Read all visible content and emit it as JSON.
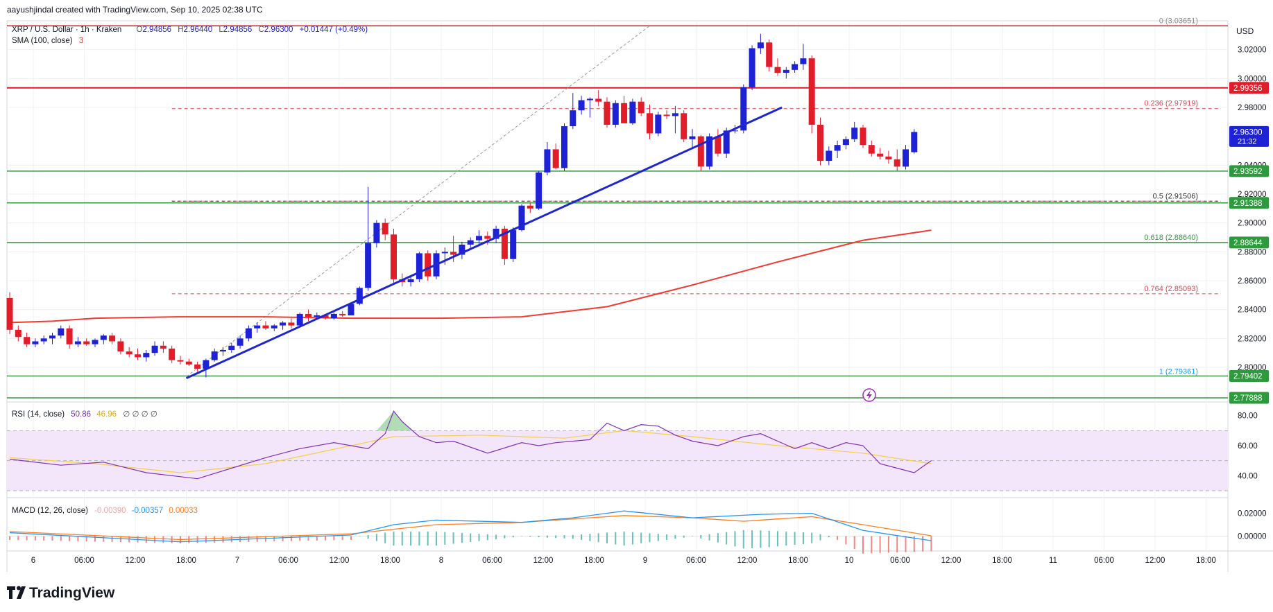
{
  "header": {
    "credit": "aayushjindal created with TradingView.com, Sep 10, 2025 02:38 UTC",
    "symbol": "XRP / U.S. Dollar · 1h · Kraken",
    "ohlc": {
      "o_label": "O",
      "o": "2.94856",
      "h_label": "H",
      "h": "2.96440",
      "l_label": "L",
      "l": "2.94856",
      "c_label": "C",
      "c": "2.96300",
      "chg": "+0.01447 (+0.49%)"
    },
    "sma_label": "SMA (100, close)",
    "sma_value": "3",
    "currency": "USD"
  },
  "colors": {
    "up": "#1e22d6",
    "down": "#e11d2a",
    "trendline": "#1f26d0",
    "sma": "#f23a2f",
    "resistance": "#e5141f",
    "support": "#2e9a3e",
    "fib_dash": "#e0434f",
    "rsi_line": "#7e2fb8",
    "rsi_ma": "#f6cf45",
    "rsi_band": "#f3e6fb",
    "macd_line": "#2196f3",
    "signal_line": "#ff7f1e"
  },
  "price_axis": {
    "min": 2.776,
    "max": 3.04,
    "ticks": [
      "3.02000",
      "3.00000",
      "2.98000",
      "2.94000",
      "2.92000",
      "2.90000",
      "2.88000",
      "2.86000",
      "2.84000",
      "2.82000",
      "2.80000"
    ],
    "tick_values": [
      3.02,
      3.0,
      2.98,
      2.94,
      2.92,
      2.9,
      2.88,
      2.86,
      2.84,
      2.82,
      2.8
    ]
  },
  "price_badges": [
    {
      "label": "2.99356",
      "value": 2.99356,
      "color": "#e11d2a"
    },
    {
      "label": "2.96300",
      "value": 2.963,
      "color": "#1e22d6",
      "sub": "21:32"
    },
    {
      "label": "2.93592",
      "value": 2.93592,
      "color": "#2e9a3e"
    },
    {
      "label": "2.91388",
      "value": 2.91388,
      "color": "#2e9a3e"
    },
    {
      "label": "2.88644",
      "value": 2.88644,
      "color": "#2e9a3e"
    },
    {
      "label": "2.79402",
      "value": 2.79402,
      "color": "#2e9a3e"
    },
    {
      "label": "2.77888",
      "value": 2.77888,
      "color": "#2e9a3e"
    }
  ],
  "fib_levels": [
    {
      "label": "0 (3.03651)",
      "value": 3.03651,
      "dashed": false
    },
    {
      "label": "0.236 (2.97919)",
      "value": 2.97919,
      "dashed": true
    },
    {
      "label": "0.5 (2.91506)",
      "value": 2.91506,
      "dashed": true
    },
    {
      "label": "0.618 (2.88640)",
      "value": 2.8864,
      "dashed": false
    },
    {
      "label": "0.764 (2.85093)",
      "value": 2.85093,
      "dashed": true
    },
    {
      "label": "1 (2.79361)",
      "value": 2.79361,
      "dashed": false
    }
  ],
  "time_axis": [
    "6",
    "06:00",
    "12:00",
    "18:00",
    "7",
    "06:00",
    "12:00",
    "18:00",
    "8",
    "06:00",
    "12:00",
    "18:00",
    "9",
    "06:00",
    "12:00",
    "18:00",
    "10",
    "06:00",
    "12:00",
    "18:00",
    "11",
    "06:00",
    "12:00",
    "18:00"
  ],
  "rsi": {
    "label": "RSI (14, close)",
    "v1": "50.86",
    "v2": "46.96",
    "extra": "∅ ∅ ∅ ∅",
    "ticks": [
      "80.00",
      "60.00",
      "40.00"
    ]
  },
  "macd": {
    "label": "MACD (12, 26, close)",
    "hist": "-0.00390",
    "macd": "-0.00357",
    "signal": "0.00033",
    "ticks": [
      "0.02000",
      "0.00000"
    ]
  },
  "brand": "TradingView",
  "chart_data": {
    "type": "candlestick",
    "title": "XRP / U.S. Dollar · 1h · Kraken",
    "ylabel": "USD",
    "ylim": [
      2.776,
      3.04
    ],
    "x_start": "Sep 5, 2025 20:00 UTC",
    "interval": "1h",
    "candles": [
      [
        2.848,
        2.852,
        2.823,
        2.826
      ],
      [
        2.826,
        2.829,
        2.818,
        2.821
      ],
      [
        2.821,
        2.824,
        2.814,
        2.816
      ],
      [
        2.816,
        2.82,
        2.814,
        2.818
      ],
      [
        2.818,
        2.822,
        2.816,
        2.82
      ],
      [
        2.82,
        2.824,
        2.816,
        2.822
      ],
      [
        2.822,
        2.829,
        2.82,
        2.827
      ],
      [
        2.827,
        2.829,
        2.813,
        2.816
      ],
      [
        2.816,
        2.821,
        2.814,
        2.818
      ],
      [
        2.818,
        2.82,
        2.815,
        2.816
      ],
      [
        2.816,
        2.82,
        2.814,
        2.819
      ],
      [
        2.819,
        2.823,
        2.816,
        2.822
      ],
      [
        2.822,
        2.824,
        2.816,
        2.818
      ],
      [
        2.818,
        2.82,
        2.809,
        2.811
      ],
      [
        2.811,
        2.814,
        2.807,
        2.809
      ],
      [
        2.809,
        2.813,
        2.805,
        2.807
      ],
      [
        2.807,
        2.812,
        2.804,
        2.81
      ],
      [
        2.81,
        2.818,
        2.808,
        2.815
      ],
      [
        2.815,
        2.818,
        2.81,
        2.813
      ],
      [
        2.813,
        2.815,
        2.803,
        2.805
      ],
      [
        2.805,
        2.808,
        2.802,
        2.804
      ],
      [
        2.804,
        2.806,
        2.801,
        2.802
      ],
      [
        2.802,
        2.804,
        2.797,
        2.799
      ],
      [
        2.799,
        2.806,
        2.793,
        2.805
      ],
      [
        2.805,
        2.813,
        2.804,
        2.811
      ],
      [
        2.811,
        2.814,
        2.808,
        2.812
      ],
      [
        2.812,
        2.817,
        2.81,
        2.815
      ],
      [
        2.815,
        2.822,
        2.813,
        2.82
      ],
      [
        2.82,
        2.829,
        2.818,
        2.827
      ],
      [
        2.827,
        2.831,
        2.824,
        2.829
      ],
      [
        2.829,
        2.832,
        2.826,
        2.827
      ],
      [
        2.827,
        2.83,
        2.825,
        2.829
      ],
      [
        2.829,
        2.832,
        2.826,
        2.831
      ],
      [
        2.831,
        2.834,
        2.827,
        2.829
      ],
      [
        2.829,
        2.838,
        2.828,
        2.837
      ],
      [
        2.837,
        2.84,
        2.832,
        2.835
      ],
      [
        2.835,
        2.838,
        2.833,
        2.836
      ],
      [
        2.836,
        2.837,
        2.833,
        2.834
      ],
      [
        2.834,
        2.838,
        2.833,
        2.837
      ],
      [
        2.837,
        2.839,
        2.835,
        2.836
      ],
      [
        2.836,
        2.845,
        2.836,
        2.844
      ],
      [
        2.844,
        2.856,
        2.843,
        2.855
      ],
      [
        2.855,
        2.925,
        2.853,
        2.886
      ],
      [
        2.886,
        2.902,
        2.883,
        2.9
      ],
      [
        2.9,
        2.903,
        2.888,
        2.892
      ],
      [
        2.892,
        2.896,
        2.858,
        2.861
      ],
      [
        2.861,
        2.865,
        2.856,
        2.859
      ],
      [
        2.859,
        2.863,
        2.856,
        2.861
      ],
      [
        2.861,
        2.88,
        2.859,
        2.879
      ],
      [
        2.879,
        2.881,
        2.86,
        2.863
      ],
      [
        2.863,
        2.881,
        2.861,
        2.879
      ],
      [
        2.879,
        2.883,
        2.871,
        2.88
      ],
      [
        2.88,
        2.891,
        2.873,
        2.878
      ],
      [
        2.878,
        2.887,
        2.875,
        2.885
      ],
      [
        2.885,
        2.89,
        2.882,
        2.888
      ],
      [
        2.888,
        2.895,
        2.885,
        2.891
      ],
      [
        2.891,
        2.894,
        2.885,
        2.889
      ],
      [
        2.889,
        2.898,
        2.886,
        2.896
      ],
      [
        2.896,
        2.898,
        2.871,
        2.875
      ],
      [
        2.875,
        2.897,
        2.873,
        2.895
      ],
      [
        2.895,
        2.913,
        2.894,
        2.912
      ],
      [
        2.912,
        2.914,
        2.907,
        2.91
      ],
      [
        2.91,
        2.936,
        2.909,
        2.935
      ],
      [
        2.935,
        2.956,
        2.933,
        2.951
      ],
      [
        2.951,
        2.955,
        2.937,
        2.938
      ],
      [
        2.938,
        2.969,
        2.936,
        2.967
      ],
      [
        2.967,
        2.99,
        2.965,
        2.978
      ],
      [
        2.978,
        2.988,
        2.975,
        2.985
      ],
      [
        2.985,
        2.987,
        2.973,
        2.986
      ],
      [
        2.986,
        2.992,
        2.981,
        2.984
      ],
      [
        2.984,
        2.987,
        2.966,
        2.968
      ],
      [
        2.968,
        2.985,
        2.966,
        2.983
      ],
      [
        2.983,
        2.988,
        2.971,
        2.969
      ],
      [
        2.969,
        2.986,
        2.968,
        2.984
      ],
      [
        2.984,
        2.987,
        2.974,
        2.976
      ],
      [
        2.976,
        2.982,
        2.958,
        2.962
      ],
      [
        2.962,
        2.977,
        2.96,
        2.975
      ],
      [
        2.975,
        2.978,
        2.972,
        2.974
      ],
      [
        2.974,
        2.981,
        2.962,
        2.976
      ],
      [
        2.976,
        2.978,
        2.956,
        2.958
      ],
      [
        2.958,
        2.965,
        2.952,
        2.96
      ],
      [
        2.96,
        2.961,
        2.936,
        2.939
      ],
      [
        2.939,
        2.962,
        2.937,
        2.96
      ],
      [
        2.96,
        2.965,
        2.946,
        2.948
      ],
      [
        2.948,
        2.966,
        2.945,
        2.964
      ],
      [
        2.964,
        2.968,
        2.962,
        2.964
      ],
      [
        2.964,
        2.996,
        2.962,
        2.994
      ],
      [
        2.994,
        3.023,
        2.992,
        3.021
      ],
      [
        3.021,
        3.031,
        3.017,
        3.025
      ],
      [
        3.025,
        3.027,
        3.005,
        3.008
      ],
      [
        3.008,
        3.014,
        3.002,
        3.004
      ],
      [
        3.004,
        3.008,
        3.0,
        3.006
      ],
      [
        3.006,
        3.012,
        3.004,
        3.01
      ],
      [
        3.01,
        3.024,
        3.006,
        3.014
      ],
      [
        3.014,
        3.016,
        2.962,
        2.968
      ],
      [
        2.968,
        2.973,
        2.94,
        2.943
      ],
      [
        2.943,
        2.953,
        2.94,
        2.95
      ],
      [
        2.95,
        2.957,
        2.945,
        2.954
      ],
      [
        2.954,
        2.96,
        2.951,
        2.958
      ],
      [
        2.958,
        2.97,
        2.956,
        2.966
      ],
      [
        2.966,
        2.968,
        2.952,
        2.954
      ],
      [
        2.954,
        2.957,
        2.946,
        2.948
      ],
      [
        2.948,
        2.952,
        2.944,
        2.946
      ],
      [
        2.946,
        2.95,
        2.941,
        2.944
      ],
      [
        2.944,
        2.951,
        2.936,
        2.939
      ],
      [
        2.939,
        2.954,
        2.937,
        2.951
      ],
      [
        2.949,
        2.965,
        2.948,
        2.963
      ]
    ],
    "sma100": [
      [
        0,
        2.831
      ],
      [
        5,
        2.832
      ],
      [
        10,
        2.834
      ],
      [
        20,
        2.835
      ],
      [
        30,
        2.835
      ],
      [
        40,
        2.834
      ],
      [
        50,
        2.834
      ],
      [
        60,
        2.835
      ],
      [
        70,
        2.842
      ],
      [
        80,
        2.857
      ],
      [
        90,
        2.873
      ],
      [
        100,
        2.888
      ],
      [
        108,
        2.895
      ]
    ],
    "trendline": [
      [
        20.7,
        2.7925
      ],
      [
        90.5,
        2.98
      ]
    ],
    "fib_guide": [
      [
        20.7,
        2.7936
      ],
      [
        75,
        3.0365
      ]
    ],
    "rsi_series": [
      [
        0,
        51
      ],
      [
        6,
        47
      ],
      [
        11,
        49
      ],
      [
        16,
        42
      ],
      [
        22,
        38
      ],
      [
        26,
        45
      ],
      [
        30,
        52
      ],
      [
        34,
        58
      ],
      [
        38,
        62
      ],
      [
        40,
        60
      ],
      [
        42,
        58
      ],
      [
        44,
        68
      ],
      [
        45,
        83
      ],
      [
        46,
        76
      ],
      [
        48,
        66
      ],
      [
        50,
        62
      ],
      [
        52,
        63
      ],
      [
        56,
        55
      ],
      [
        60,
        62
      ],
      [
        62,
        60
      ],
      [
        64,
        62
      ],
      [
        68,
        64
      ],
      [
        70,
        75
      ],
      [
        72,
        70
      ],
      [
        74,
        74
      ],
      [
        76,
        73
      ],
      [
        78,
        67
      ],
      [
        80,
        63
      ],
      [
        83,
        60
      ],
      [
        86,
        66
      ],
      [
        88,
        68
      ],
      [
        90,
        63
      ],
      [
        92,
        58
      ],
      [
        94,
        62
      ],
      [
        96,
        58
      ],
      [
        98,
        62
      ],
      [
        100,
        60
      ],
      [
        102,
        48
      ],
      [
        104,
        45
      ],
      [
        106,
        42
      ],
      [
        108,
        50
      ]
    ],
    "rsi_ma_series": [
      [
        0,
        52
      ],
      [
        10,
        48
      ],
      [
        20,
        42
      ],
      [
        30,
        48
      ],
      [
        40,
        60
      ],
      [
        45,
        66
      ],
      [
        55,
        67
      ],
      [
        65,
        65
      ],
      [
        72,
        70
      ],
      [
        80,
        66
      ],
      [
        90,
        60
      ],
      [
        100,
        55
      ],
      [
        108,
        48
      ]
    ],
    "macd_series": [
      [
        0,
        0.003
      ],
      [
        20,
        -0.005
      ],
      [
        40,
        0.001
      ],
      [
        45,
        0.01
      ],
      [
        50,
        0.014
      ],
      [
        60,
        0.012
      ],
      [
        66,
        0.016
      ],
      [
        72,
        0.022
      ],
      [
        80,
        0.016
      ],
      [
        88,
        0.019
      ],
      [
        94,
        0.02
      ],
      [
        100,
        0.005
      ],
      [
        108,
        -0.004
      ]
    ],
    "signal_series": [
      [
        0,
        0.004
      ],
      [
        20,
        -0.003
      ],
      [
        40,
        0.002
      ],
      [
        50,
        0.01
      ],
      [
        60,
        0.012
      ],
      [
        72,
        0.018
      ],
      [
        80,
        0.016
      ],
      [
        86,
        0.013
      ],
      [
        94,
        0.017
      ],
      [
        100,
        0.01
      ],
      [
        108,
        0.0003
      ]
    ],
    "macd_ylim": [
      -0.01,
      0.03
    ]
  }
}
